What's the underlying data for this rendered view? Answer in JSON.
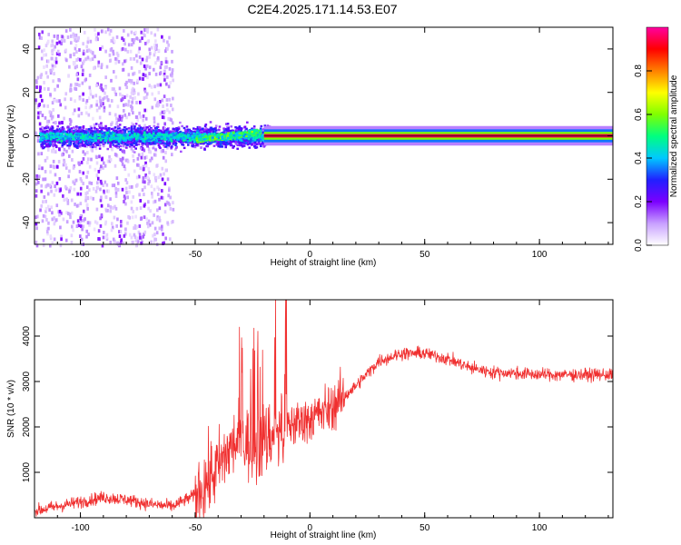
{
  "title": "C2E4.2025.171.14.53.E07",
  "chart_data": [
    {
      "type": "heatmap",
      "title": "C2E4.2025.171.14.53.E07",
      "xlabel": "Height of straight line (km)",
      "ylabel": "Frequency (Hz)",
      "xlim": [
        -120,
        132
      ],
      "ylim": [
        -50,
        50
      ],
      "x_ticks": [
        "-100",
        "-50",
        "0",
        "50",
        "100"
      ],
      "y_ticks": [
        "-40",
        "-20",
        "0",
        "20",
        "40"
      ],
      "colorbar": {
        "label": "Normalized spectral amplitude",
        "range": [
          0,
          1
        ],
        "ticks": [
          "0.0",
          "0.2",
          "0.4",
          "0.6",
          "0.8"
        ],
        "colors": [
          "#ffffff",
          "#c8a0ff",
          "#7b00ff",
          "#2020ff",
          "#00c8ff",
          "#00ff80",
          "#80ff00",
          "#ffff00",
          "#ff8000",
          "#ff0000",
          "#ff00a0"
        ]
      },
      "features": [
        {
          "x_range": [
            -120,
            -60
          ],
          "freq_range": [
            -50,
            50
          ],
          "amplitude": 0.08
        },
        {
          "x_range": [
            -118,
            -18
          ],
          "freq_range": [
            -7,
            7
          ],
          "amplitude": 0.3
        },
        {
          "x_range": [
            -50,
            -22
          ],
          "freq_range": [
            -4,
            5
          ],
          "amplitude": 0.45
        },
        {
          "x_range": [
            -20,
            132
          ],
          "freq": 0,
          "amplitude": 0.95
        }
      ]
    },
    {
      "type": "line",
      "xlabel": "Height of straight line (km)",
      "ylabel": "SNR (10 * v/v)",
      "xlim": [
        -120,
        132
      ],
      "ylim": [
        0,
        4800
      ],
      "x_ticks": [
        "-100",
        "-50",
        "0",
        "50",
        "100"
      ],
      "y_ticks": [
        "1000",
        "2000",
        "3000",
        "4000"
      ],
      "color": "#f03030",
      "x": [
        -120,
        -110,
        -100,
        -90,
        -80,
        -70,
        -60,
        -50,
        -45,
        -40,
        -35,
        -30,
        -25,
        -20,
        -15,
        -10,
        -5,
        0,
        5,
        10,
        20,
        30,
        40,
        50,
        60,
        70,
        80,
        90,
        100,
        110,
        120,
        132
      ],
      "y": [
        150,
        250,
        350,
        450,
        400,
        300,
        250,
        500,
        800,
        1100,
        1500,
        1800,
        1500,
        1700,
        1900,
        2000,
        2100,
        2200,
        2300,
        2450,
        2900,
        3450,
        3620,
        3620,
        3500,
        3300,
        3200,
        3180,
        3150,
        3150,
        3150,
        3150
      ]
    }
  ]
}
